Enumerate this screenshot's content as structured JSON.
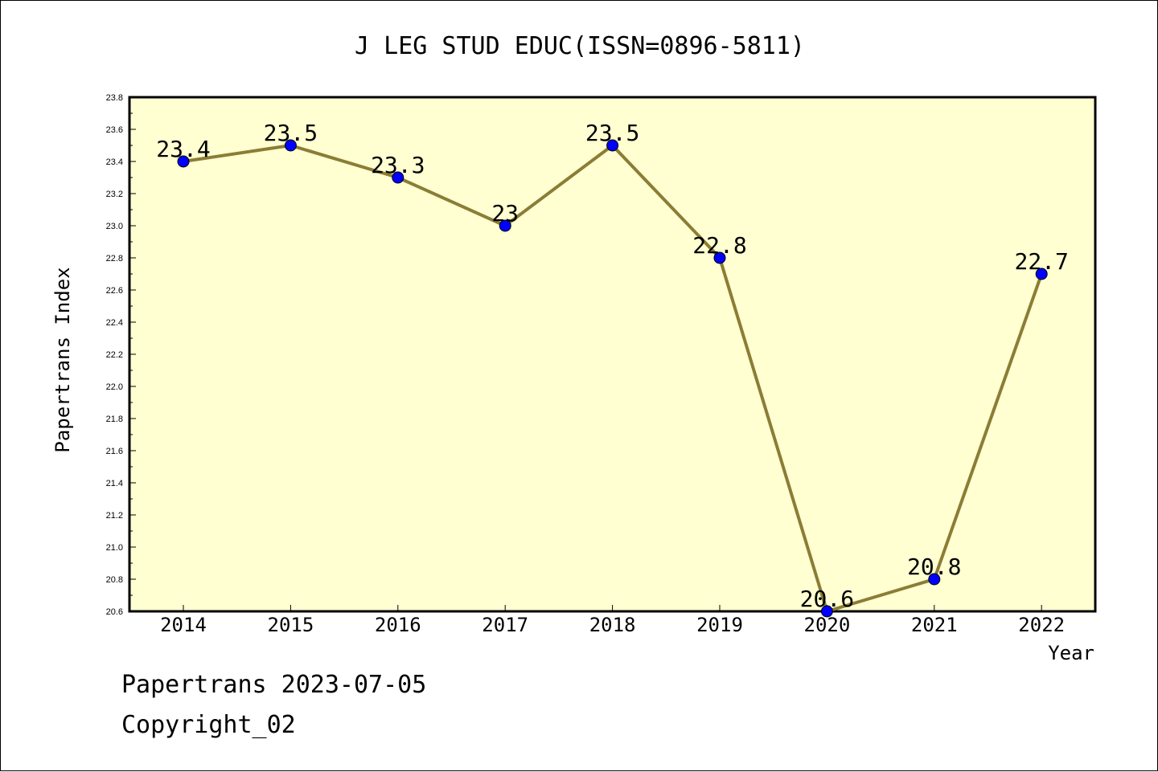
{
  "chart_data": {
    "type": "line",
    "title": "J LEG STUD EDUC(ISSN=0896-5811)",
    "xlabel": "Year",
    "ylabel": "Papertrans Index",
    "categories": [
      "2014",
      "2015",
      "2016",
      "2017",
      "2018",
      "2019",
      "2020",
      "2021",
      "2022"
    ],
    "values": [
      23.4,
      23.5,
      23.3,
      23.0,
      23.5,
      22.8,
      20.6,
      20.8,
      22.7
    ],
    "data_labels": [
      "23.4",
      "23.5",
      "23.3",
      "23",
      "23.5",
      "22.8",
      "20.6",
      "20.8",
      "22.7"
    ],
    "ylim": [
      20.6,
      23.8
    ],
    "yticks": [
      "20.6",
      "20.8",
      "21.0",
      "21.2",
      "21.4",
      "21.6",
      "21.8",
      "22.0",
      "22.2",
      "22.4",
      "22.6",
      "22.8",
      "23.0",
      "23.2",
      "23.4",
      "23.6",
      "23.8"
    ],
    "grid": false,
    "colors": {
      "plot_background": "#ffffd2",
      "line": "#8b7d35",
      "marker": "#0000ff",
      "axis": "#000000"
    }
  },
  "footer": {
    "line1": "Papertrans 2023-07-05",
    "line2": "Copyright_02"
  }
}
